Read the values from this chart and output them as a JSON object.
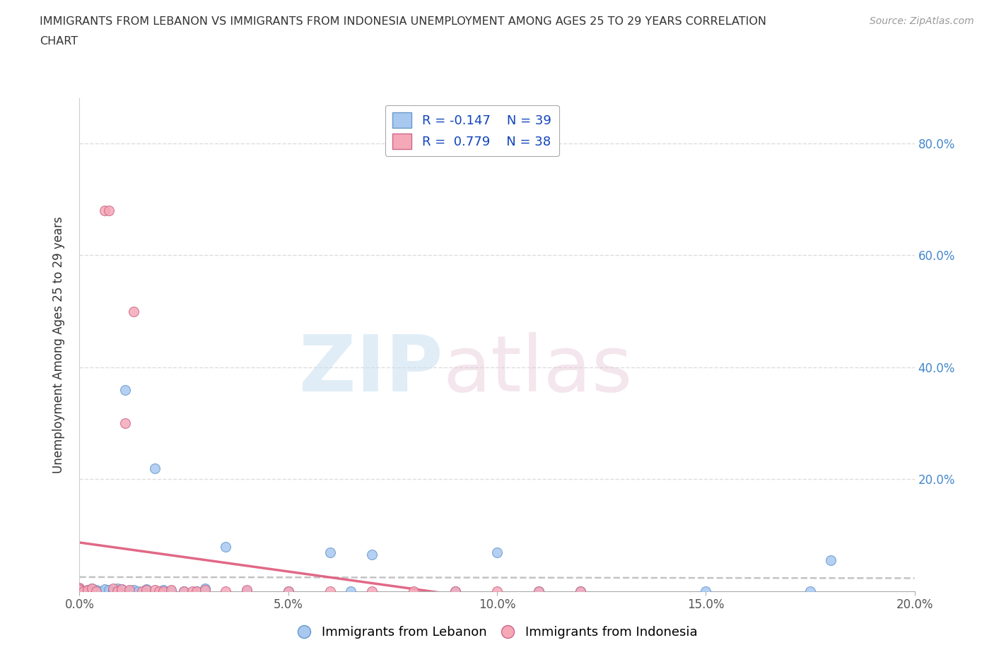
{
  "title_line1": "IMMIGRANTS FROM LEBANON VS IMMIGRANTS FROM INDONESIA UNEMPLOYMENT AMONG AGES 25 TO 29 YEARS CORRELATION",
  "title_line2": "CHART",
  "source": "Source: ZipAtlas.com",
  "ylabel": "Unemployment Among Ages 25 to 29 years",
  "xlim": [
    0.0,
    0.2
  ],
  "ylim": [
    0.0,
    0.88
  ],
  "xtick_labels": [
    "0.0%",
    "5.0%",
    "10.0%",
    "15.0%",
    "20.0%"
  ],
  "xtick_vals": [
    0.0,
    0.05,
    0.1,
    0.15,
    0.2
  ],
  "ytick_labels": [
    "20.0%",
    "40.0%",
    "60.0%",
    "80.0%"
  ],
  "ytick_vals": [
    0.2,
    0.4,
    0.6,
    0.8
  ],
  "lebanon_color": "#a8c8f0",
  "indonesia_color": "#f5a8b8",
  "lebanon_edge": "#6699cc",
  "indonesia_edge": "#cc6688",
  "trend_lebanon_color": "#aaaaaa",
  "trend_indonesia_color": "#e06080",
  "legend_R_lebanon": "R = -0.147",
  "legend_N_lebanon": "N = 39",
  "legend_R_indonesia": "R =  0.779",
  "legend_N_indonesia": "N = 38",
  "lebanon_x": [
    0.0,
    0.0,
    0.0,
    0.0,
    0.0,
    0.002,
    0.002,
    0.003,
    0.004,
    0.005,
    0.006,
    0.007,
    0.008,
    0.009,
    0.01,
    0.011,
    0.012,
    0.013,
    0.014,
    0.016,
    0.018,
    0.02,
    0.022,
    0.025,
    0.028,
    0.03,
    0.035,
    0.04,
    0.05,
    0.06,
    0.065,
    0.07,
    0.09,
    0.1,
    0.11,
    0.12,
    0.15,
    0.175,
    0.18
  ],
  "lebanon_y": [
    0.0,
    0.003,
    0.005,
    0.004,
    0.002,
    0.0,
    0.003,
    0.005,
    0.003,
    0.0,
    0.004,
    0.003,
    0.0,
    0.005,
    0.004,
    0.36,
    0.0,
    0.003,
    0.0,
    0.004,
    0.22,
    0.003,
    0.0,
    0.0,
    0.0,
    0.005,
    0.08,
    0.0,
    0.0,
    0.07,
    0.0,
    0.065,
    0.0,
    0.07,
    0.0,
    0.0,
    0.0,
    0.0,
    0.055
  ],
  "indonesia_x": [
    0.0,
    0.0,
    0.0,
    0.0,
    0.0,
    0.0,
    0.001,
    0.002,
    0.003,
    0.004,
    0.006,
    0.007,
    0.008,
    0.009,
    0.01,
    0.011,
    0.012,
    0.013,
    0.015,
    0.016,
    0.018,
    0.019,
    0.02,
    0.022,
    0.025,
    0.027,
    0.028,
    0.03,
    0.035,
    0.04,
    0.05,
    0.06,
    0.07,
    0.08,
    0.09,
    0.1,
    0.11,
    0.12
  ],
  "indonesia_y": [
    0.0,
    0.003,
    0.006,
    0.003,
    0.0,
    0.004,
    0.0,
    0.003,
    0.005,
    0.0,
    0.68,
    0.68,
    0.005,
    0.0,
    0.004,
    0.3,
    0.003,
    0.5,
    0.0,
    0.003,
    0.003,
    0.0,
    0.0,
    0.003,
    0.0,
    0.0,
    0.0,
    0.003,
    0.0,
    0.003,
    0.0,
    0.0,
    0.0,
    0.0,
    0.0,
    0.0,
    0.0,
    0.0
  ],
  "background_color": "#ffffff",
  "grid_color": "#dddddd"
}
